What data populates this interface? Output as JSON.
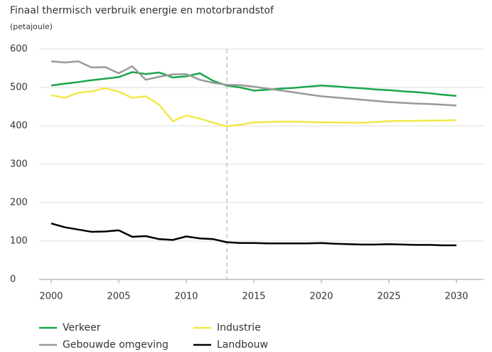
{
  "chart_data": {
    "type": "line",
    "title": "Finaal thermisch verbruik energie en motorbrandstof",
    "subtitle": "(petajoule)",
    "x": [
      2000,
      2001,
      2002,
      2003,
      2004,
      2005,
      2006,
      2007,
      2008,
      2009,
      2010,
      2011,
      2012,
      2013,
      2014,
      2015,
      2016,
      2017,
      2018,
      2019,
      2020,
      2021,
      2022,
      2023,
      2024,
      2025,
      2026,
      2027,
      2028,
      2029,
      2030
    ],
    "series": [
      {
        "name": "Verkeer",
        "color": "#1aa64a",
        "values": [
          505,
          510,
          514,
          519,
          523,
          527,
          540,
          535,
          539,
          526,
          529,
          537,
          517,
          505,
          500,
          492,
          494,
          497,
          499,
          502,
          505,
          503,
          500,
          498,
          495,
          493,
          490,
          488,
          485,
          481,
          478
        ]
      },
      {
        "name": "Industrie",
        "color": "#f0e94a",
        "values": [
          480,
          473,
          486,
          490,
          498,
          489,
          473,
          477,
          455,
          412,
          427,
          419,
          408,
          399,
          403,
          409,
          410,
          411,
          411,
          410,
          409,
          409,
          408,
          408,
          410,
          412,
          413,
          413,
          414,
          414,
          415
        ]
      },
      {
        "name": "Gebouwde omgeving",
        "color": "#999999",
        "values": [
          568,
          565,
          568,
          552,
          553,
          537,
          555,
          520,
          528,
          534,
          535,
          520,
          512,
          507,
          506,
          502,
          497,
          492,
          487,
          482,
          477,
          474,
          471,
          468,
          465,
          462,
          460,
          458,
          457,
          455,
          453
        ]
      },
      {
        "name": "Landbouw",
        "color": "#000000",
        "values": [
          146,
          136,
          130,
          124,
          125,
          128,
          111,
          113,
          105,
          103,
          112,
          107,
          105,
          97,
          95,
          95,
          94,
          94,
          94,
          94,
          95,
          93,
          92,
          91,
          91,
          92,
          91,
          90,
          90,
          89,
          89
        ]
      }
    ],
    "xlim": [
      2000,
      2030
    ],
    "xticks": [
      2000,
      2005,
      2010,
      2015,
      2020,
      2025,
      2030
    ],
    "ylim": [
      0,
      600
    ],
    "yticks": [
      0,
      100,
      200,
      300,
      400,
      500,
      600
    ],
    "grid": true,
    "reference_x": 2013,
    "legend": "bottom"
  }
}
